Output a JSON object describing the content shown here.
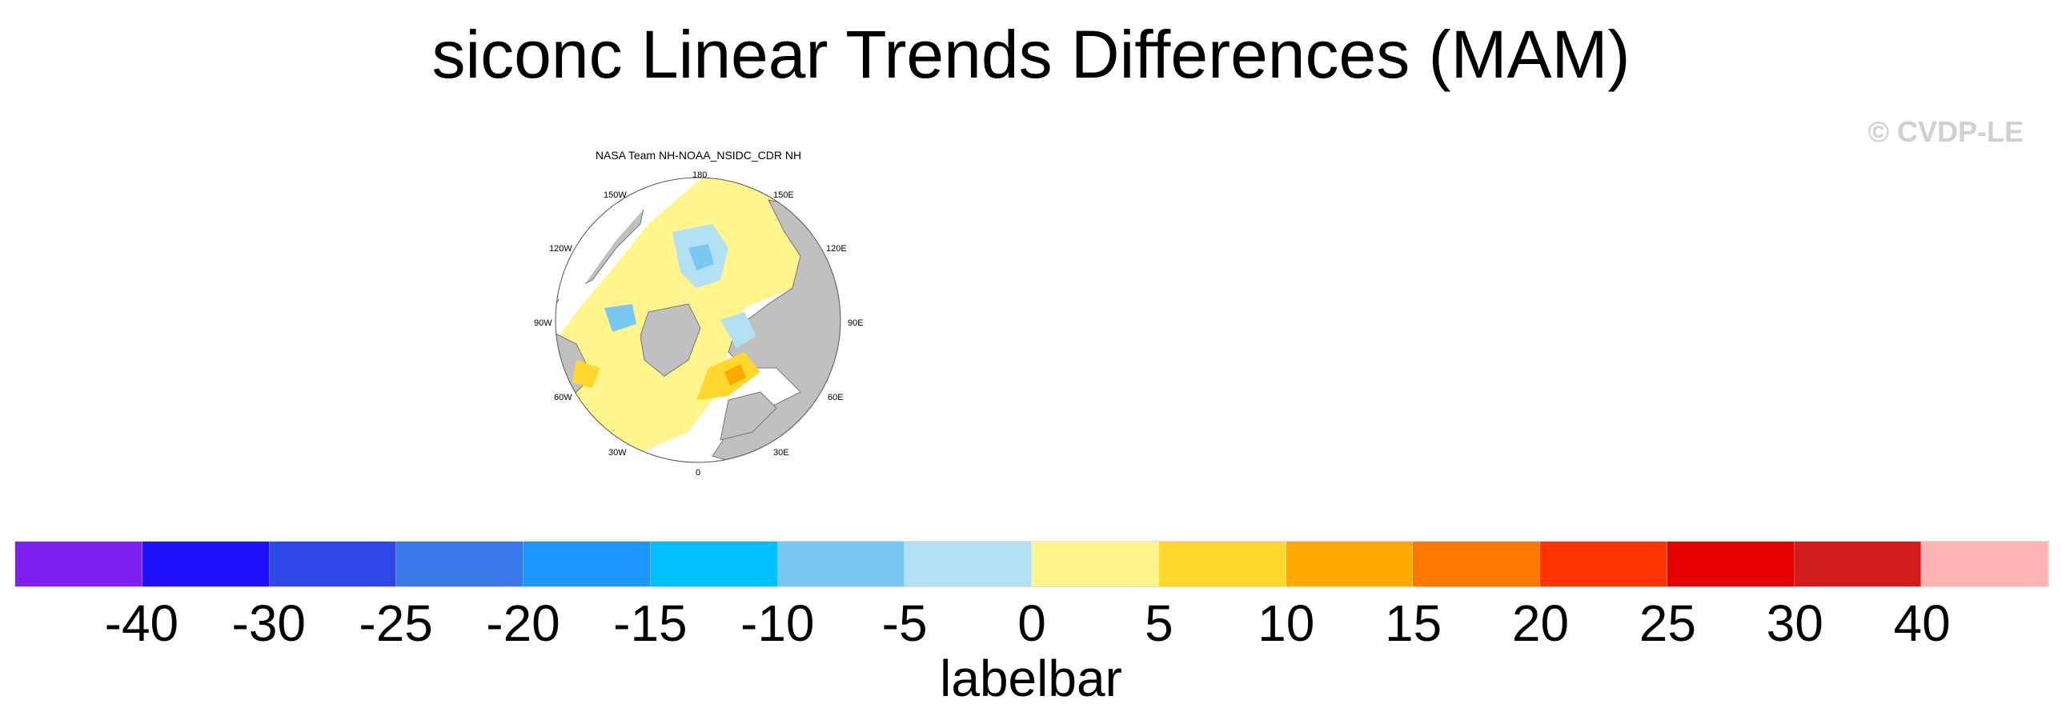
{
  "title": "siconc Linear Trends Differences (MAM)",
  "watermark": "© CVDP-LE",
  "panel": {
    "title": "NASA Team NH-NOAA_NSIDC_CDR NH",
    "longitude_labels": {
      "lon_180": "180",
      "lon_150e": "150E",
      "lon_120e": "120E",
      "lon_90e": "90E",
      "lon_60e": "60E",
      "lon_30e": "30E",
      "lon_0": "0",
      "lon_30w": "30W",
      "lon_60w": "60W",
      "lon_90w": "90W",
      "lon_120w": "120W",
      "lon_150w": "150W"
    }
  },
  "labelbar": {
    "title": "labelbar",
    "colors": [
      "#8020f0",
      "#1e10f8",
      "#2e48e8",
      "#3878e8",
      "#1e96ff",
      "#00c0ff",
      "#78c8f2",
      "#b4e0f4",
      "#fff58c",
      "#ffd72d",
      "#ffa800",
      "#ff7800",
      "#ff3400",
      "#e60000",
      "#d01c1c",
      "#ffb4b4"
    ],
    "labels": [
      "-40",
      "-30",
      "-25",
      "-20",
      "-15",
      "-10",
      "-5",
      "0",
      "5",
      "10",
      "15",
      "20",
      "25",
      "30",
      "40"
    ]
  },
  "legend_colors": {
    "land": "#c0c0c0",
    "ocean_missing": "#ffffff",
    "coast": "#606060"
  }
}
